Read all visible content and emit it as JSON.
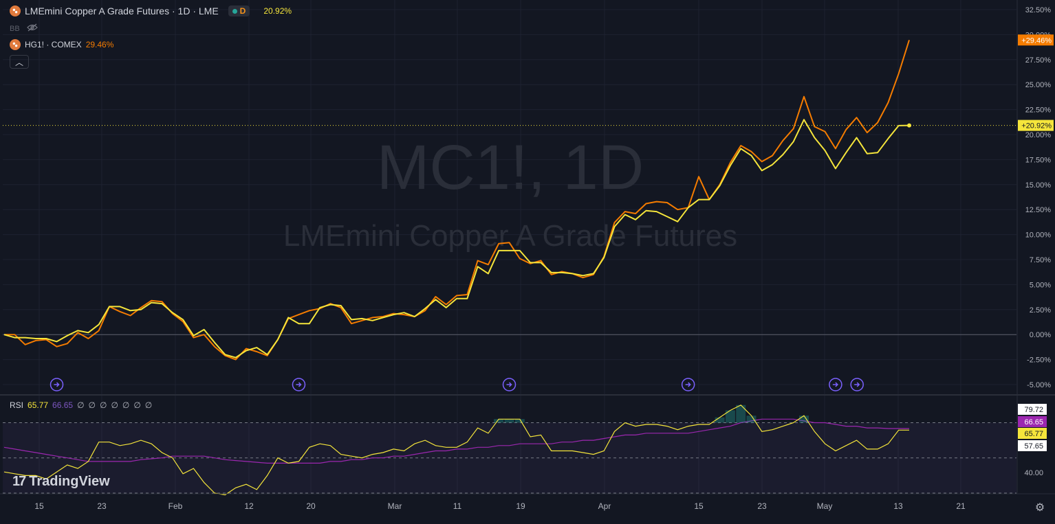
{
  "header": {
    "title": "LMEmini Copper A Grade Futures · 1D · LME",
    "interval_badge": "D",
    "main_pct": "20.92%",
    "indicator_label": "BB",
    "compare_label": "HG1! · COMEX",
    "compare_pct": "29.46%"
  },
  "watermark": {
    "line1": "MC1!, 1D",
    "line2": "LMEmini Copper A Grade Futures"
  },
  "rsi": {
    "label": "RSI",
    "value": "65.77",
    "ma_value": "66.65",
    "na": [
      "∅",
      "∅",
      "∅",
      "∅",
      "∅",
      "∅",
      "∅"
    ],
    "axis_labels": [
      "79.72",
      "66.65",
      "65.77",
      "57.65",
      "40.00"
    ]
  },
  "logo_text": "TradingView",
  "colors": {
    "background": "#131722",
    "main_series": "#f5e53b",
    "compare_series": "#f57c00",
    "rsi_line": "#f5e53b",
    "rsi_ma": "#9c27b0",
    "event_icon": "#7b61ff"
  },
  "chart_data": {
    "type": "line",
    "y_unit": "%",
    "ylim": [
      -5.5,
      32.5
    ],
    "y_ticks": [
      "32.50%",
      "30.00%",
      "27.50%",
      "25.00%",
      "22.50%",
      "20.00%",
      "17.50%",
      "15.00%",
      "12.50%",
      "10.00%",
      "7.50%",
      "5.00%",
      "2.50%",
      "0.00%",
      "-2.50%",
      "-5.00%"
    ],
    "x_ticks": [
      "15",
      "23",
      "Feb",
      "12",
      "20",
      "Mar",
      "11",
      "19",
      "Apr",
      "15",
      "23",
      "May",
      "13",
      "21"
    ],
    "last_labels": {
      "compare": "+29.46%",
      "main": "+20.92%"
    },
    "series": [
      {
        "name": "MC1!",
        "values": [
          0,
          -0.3,
          -0.3,
          -0.4,
          -0.4,
          -0.7,
          -0.1,
          0.4,
          0.2,
          1.0,
          2.8,
          2.8,
          2.4,
          2.5,
          3.2,
          3.1,
          2.2,
          1.5,
          -0.1,
          0.5,
          -0.8,
          -2.0,
          -2.3,
          -1.6,
          -1.3,
          -2.0,
          -0.5,
          1.7,
          1.1,
          1.1,
          2.7,
          3.0,
          2.9,
          1.5,
          1.6,
          1.4,
          1.7,
          2.0,
          2.2,
          1.8,
          2.6,
          3.5,
          2.7,
          3.6,
          3.6,
          6.8,
          6.1,
          8.4,
          8.4,
          8.4,
          7.2,
          7.2,
          6.2,
          6.2,
          6.1,
          5.9,
          6.1,
          7.7,
          10.8,
          12.0,
          11.5,
          12.4,
          12.3,
          11.8,
          11.3,
          12.7,
          13.5,
          13.5,
          14.9,
          16.9,
          18.6,
          17.9,
          16.4,
          17.0,
          18.0,
          19.3,
          21.5,
          19.7,
          18.4,
          16.6,
          18.2,
          19.7,
          18.1,
          18.2,
          19.6,
          20.9,
          20.92
        ]
      },
      {
        "name": "HG1!",
        "values": [
          0,
          0,
          -1.0,
          -0.6,
          -0.5,
          -1.2,
          -0.9,
          0.2,
          -0.4,
          0.4,
          2.8,
          2.3,
          1.9,
          2.7,
          3.4,
          3.3,
          2.1,
          1.3,
          -0.3,
          0.0,
          -1.2,
          -2.1,
          -2.5,
          -1.4,
          -1.7,
          -2.1,
          -0.5,
          1.6,
          2.0,
          2.4,
          2.6,
          3.1,
          2.7,
          1.1,
          1.4,
          1.7,
          1.8,
          2.1,
          2.0,
          1.8,
          2.4,
          3.8,
          3.0,
          3.9,
          4.0,
          7.4,
          7.0,
          9.1,
          9.2,
          7.6,
          7.1,
          7.4,
          6.0,
          6.3,
          6.1,
          5.7,
          6.0,
          7.8,
          11.2,
          12.3,
          12.1,
          13.1,
          13.3,
          13.2,
          12.5,
          12.7,
          15.8,
          13.5,
          15.0,
          17.2,
          18.9,
          18.3,
          17.3,
          17.9,
          19.4,
          20.6,
          23.8,
          20.8,
          20.3,
          18.6,
          20.5,
          21.7,
          20.2,
          21.2,
          23.2,
          26.1,
          29.46
        ]
      }
    ],
    "rsi": {
      "ylim": [
        30,
        85
      ],
      "levels": [
        70,
        50,
        30
      ],
      "line": [
        42,
        41,
        40,
        40,
        38,
        42,
        46,
        44,
        48,
        59,
        59,
        57,
        58,
        60,
        58,
        53,
        50,
        41,
        44,
        36,
        30,
        29,
        33,
        35,
        32,
        40,
        50,
        47,
        48,
        56,
        58,
        57,
        52,
        51,
        50,
        52,
        53,
        55,
        54,
        58,
        60,
        57,
        56,
        56,
        59,
        67,
        64,
        72,
        72,
        72,
        62,
        63,
        54,
        54,
        54,
        53,
        52,
        54,
        65,
        70,
        68,
        69,
        69,
        68,
        66,
        68,
        69,
        69,
        73,
        77,
        80,
        74,
        65,
        66,
        68,
        70,
        74,
        65,
        58,
        54,
        57,
        60,
        55,
        55,
        58,
        65.77,
        65.77
      ],
      "ma": [
        56,
        55,
        54,
        53,
        52,
        51,
        50,
        49,
        48,
        48,
        48,
        48,
        48,
        49,
        49.5,
        50,
        51,
        51,
        51,
        51,
        50,
        49,
        48.5,
        48,
        47.5,
        47,
        47,
        47,
        47,
        47,
        47,
        48,
        48,
        49,
        49,
        50,
        50,
        51,
        51,
        52,
        53,
        54,
        54,
        55,
        55,
        56,
        56,
        57,
        57,
        58,
        58,
        58,
        58,
        59,
        59,
        60,
        60,
        61,
        62,
        63,
        63,
        64,
        64,
        64,
        64,
        64,
        65,
        66,
        67,
        68,
        70,
        71,
        72,
        72,
        72,
        72,
        71,
        70,
        70,
        69,
        68,
        68,
        67,
        67,
        66.65,
        66.65,
        66.65
      ]
    },
    "event_markers_at_x": [
      5,
      28,
      48,
      65,
      79,
      80
    ],
    "grid": true
  }
}
